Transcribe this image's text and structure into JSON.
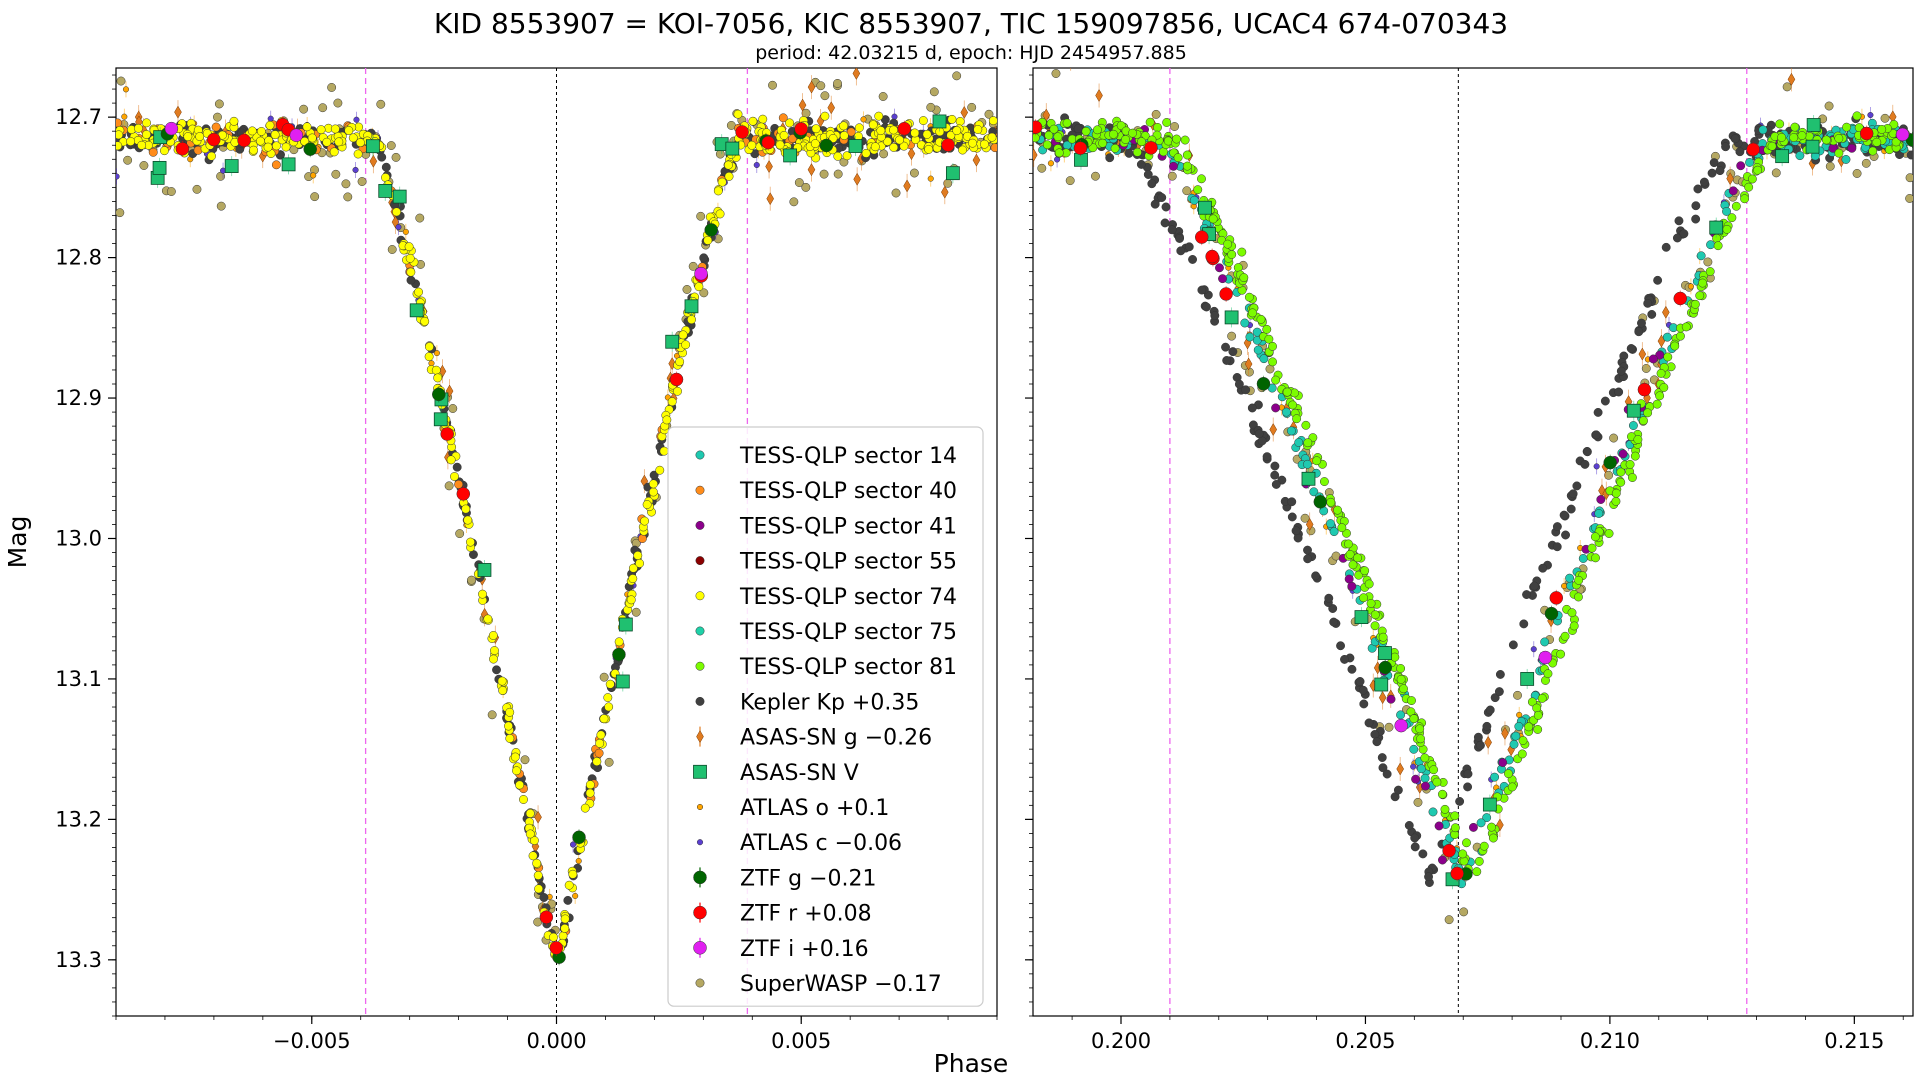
{
  "chart_data": {
    "type": "scatter",
    "title": "KID 8553907 = KOI-7056, KIC 8553907, TIC 159097856, UCAC4 674-070343",
    "subtitle": "period: 42.03215 d, epoch: HJD 2454957.885",
    "xlabel": "Phase",
    "ylabel": "Mag",
    "y_inverted": true,
    "ylim": [
      12.665,
      13.34
    ],
    "yticks": [
      "12.7",
      "12.8",
      "12.9",
      "13.0",
      "13.1",
      "13.2",
      "13.3"
    ],
    "yticks_values": [
      12.7,
      12.8,
      12.9,
      13.0,
      13.1,
      13.2,
      13.3
    ],
    "legend_placement": "lower-right of left panel",
    "panels": [
      {
        "name": "primary-eclipse",
        "xlim": [
          -0.009,
          0.009
        ],
        "xticks": [
          "−0.005",
          "0.000",
          "0.005"
        ],
        "xticks_values": [
          -0.005,
          0.0,
          0.005
        ],
        "center_line": 0.0,
        "contact_lines": [
          -0.0039,
          0.0039
        ],
        "eclipse": {
          "center": 0.0,
          "half_width": 0.0037,
          "depth": 0.59,
          "base": 12.715
        }
      },
      {
        "name": "secondary-eclipse",
        "xlim": [
          0.1982,
          0.2162
        ],
        "xticks": [
          "0.200",
          "0.205",
          "0.210",
          "0.215"
        ],
        "xticks_values": [
          0.2,
          0.205,
          0.21,
          0.215
        ],
        "center_line": 0.2069,
        "contact_lines": [
          0.201,
          0.2128
        ],
        "eclipse": {
          "center": 0.2069,
          "half_width": 0.0062,
          "depth": 0.53,
          "base": 12.715
        }
      }
    ],
    "series": [
      {
        "name": "TESS-QLP sector 14",
        "color": "#1fc9b0",
        "marker": "circle"
      },
      {
        "name": "TESS-QLP sector 40",
        "color": "#ff8c1a",
        "marker": "circle"
      },
      {
        "name": "TESS-QLP sector 41",
        "color": "#8b008b",
        "marker": "circle"
      },
      {
        "name": "TESS-QLP sector 55",
        "color": "#8b0000",
        "marker": "circle"
      },
      {
        "name": "TESS-QLP sector 74",
        "color": "#ffff00",
        "marker": "circle"
      },
      {
        "name": "TESS-QLP sector 75",
        "color": "#1fd1a8",
        "marker": "circle"
      },
      {
        "name": "TESS-QLP sector 81",
        "color": "#7cfc00",
        "marker": "circle"
      },
      {
        "name": "Kepler Kp +0.35",
        "color": "#404040",
        "marker": "circle"
      },
      {
        "name": "ASAS-SN g −0.26",
        "color": "#e07b20",
        "marker": "diamond"
      },
      {
        "name": "ASAS-SN V",
        "color": "#20c070",
        "marker": "square"
      },
      {
        "name": "ATLAS o +0.1",
        "color": "#ffa500",
        "marker": "small-circle"
      },
      {
        "name": "ATLAS c −0.06",
        "color": "#5b3fd0",
        "marker": "small-circle"
      },
      {
        "name": "ZTF g −0.21",
        "color": "#006400",
        "marker": "big-circle"
      },
      {
        "name": "ZTF r +0.08",
        "color": "#ff0000",
        "marker": "big-circle"
      },
      {
        "name": "ZTF i +0.16",
        "color": "#e020f0",
        "marker": "big-circle"
      },
      {
        "name": "SuperWASP −0.17",
        "color": "#b5a862",
        "marker": "circle"
      }
    ]
  }
}
